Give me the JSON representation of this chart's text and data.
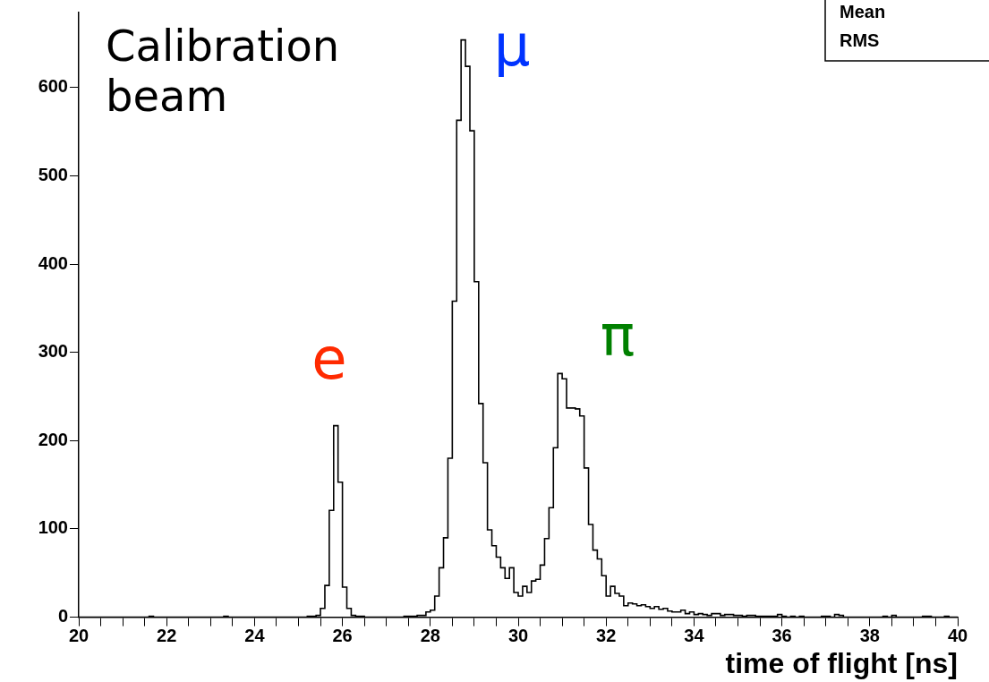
{
  "chart_data": {
    "type": "histogram",
    "xlabel": "time of flight [ns]",
    "bins": [
      20.0,
      20.1,
      20.2,
      20.3,
      20.4,
      20.5,
      20.6,
      20.7,
      20.8,
      20.9,
      21.0,
      21.1,
      21.2,
      21.3,
      21.4,
      21.5,
      21.6,
      21.7,
      21.8,
      21.9,
      22.0,
      22.1,
      22.2,
      22.3,
      22.4,
      22.5,
      22.6,
      22.7,
      22.8,
      22.9,
      23.0,
      23.1,
      23.2,
      23.3,
      23.4,
      23.5,
      23.6,
      23.7,
      23.8,
      23.9,
      24.0,
      24.1,
      24.2,
      24.3,
      24.4,
      24.5,
      24.6,
      24.7,
      24.8,
      24.9,
      25.0,
      25.1,
      25.2,
      25.3,
      25.4,
      25.5,
      25.6,
      25.7,
      25.8,
      25.9,
      26.0,
      26.1,
      26.2,
      26.3,
      26.4,
      26.5,
      26.6,
      26.7,
      26.8,
      26.9,
      27.0,
      27.1,
      27.2,
      27.3,
      27.4,
      27.5,
      27.6,
      27.7,
      27.8,
      27.9,
      28.0,
      28.1,
      28.2,
      28.3,
      28.4,
      28.5,
      28.6,
      28.7,
      28.8,
      28.9,
      29.0,
      29.1,
      29.2,
      29.3,
      29.4,
      29.5,
      29.6,
      29.7,
      29.8,
      29.9,
      30.0,
      30.1,
      30.2,
      30.3,
      30.4,
      30.5,
      30.6,
      30.7,
      30.8,
      30.9,
      31.0,
      31.1,
      31.2,
      31.3,
      31.4,
      31.5,
      31.6,
      31.7,
      31.8,
      31.9,
      32.0,
      32.1,
      32.2,
      32.3,
      32.4,
      32.5,
      32.6,
      32.7,
      32.8,
      32.9,
      33.0,
      33.1,
      33.2,
      33.3,
      33.4,
      33.5,
      33.6,
      33.7,
      33.8,
      33.9,
      34.0,
      34.1,
      34.2,
      34.3,
      34.4,
      34.5,
      34.6,
      34.7,
      34.8,
      34.9,
      35.0,
      35.1,
      35.2,
      35.3,
      35.4,
      35.5,
      35.6,
      35.7,
      35.8,
      35.9,
      36.0,
      36.1,
      36.2,
      36.3,
      36.4,
      36.5,
      36.6,
      36.7,
      36.8,
      36.9,
      37.0,
      37.1,
      37.2,
      37.3,
      37.4,
      37.5,
      37.6,
      37.7,
      37.8,
      37.9,
      38.0,
      38.1,
      38.2,
      38.3,
      38.4,
      38.5,
      38.6,
      38.7,
      38.8,
      38.9,
      39.0,
      39.1,
      39.2,
      39.3,
      39.4,
      39.5,
      39.6,
      39.7,
      39.8,
      39.9,
      40.0
    ],
    "values": [
      0,
      0,
      0,
      0,
      0,
      0,
      0,
      0,
      0,
      0,
      0,
      0,
      0,
      0,
      0,
      0,
      1,
      0,
      0,
      0,
      0,
      0,
      0,
      0,
      0,
      0,
      0,
      0,
      0,
      0,
      0,
      0,
      0,
      1,
      0,
      0,
      0,
      0,
      0,
      0,
      0,
      0,
      0,
      0,
      0,
      0,
      0,
      0,
      0,
      0,
      0,
      0,
      1,
      1,
      2,
      10,
      36,
      121,
      217,
      153,
      34,
      10,
      2,
      1,
      1,
      0,
      0,
      0,
      0,
      0,
      0,
      0,
      0,
      0,
      1,
      1,
      1,
      2,
      2,
      6,
      8,
      24,
      56,
      90,
      180,
      358,
      563,
      654,
      624,
      551,
      380,
      242,
      175,
      99,
      81,
      68,
      56,
      44,
      56,
      28,
      24,
      35,
      28,
      41,
      43,
      59,
      89,
      124,
      192,
      276,
      270,
      237,
      237,
      236,
      228,
      169,
      105,
      76,
      66,
      47,
      24,
      35,
      27,
      24,
      13,
      16,
      15,
      13,
      14,
      12,
      10,
      12,
      9,
      10,
      7,
      6,
      6,
      8,
      4,
      6,
      3,
      4,
      3,
      2,
      4,
      4,
      2,
      3,
      3,
      2,
      2,
      1,
      2,
      2,
      1,
      1,
      1,
      1,
      1,
      3,
      1,
      0,
      1,
      0,
      1,
      0,
      0,
      0,
      0,
      1,
      1,
      0,
      3,
      2,
      0,
      0,
      0,
      0,
      0,
      0,
      0,
      0,
      0,
      1,
      0,
      2,
      0,
      0,
      0,
      0,
      0,
      0,
      1,
      1,
      0,
      0,
      0,
      1,
      0,
      0
    ],
    "color": "#000000",
    "xlim": [
      20,
      40
    ],
    "xticks": [
      20,
      {
        "value": 20.5,
        "label": null
      },
      {
        "value": 21,
        "label": null
      },
      {
        "value": 21.5,
        "label": null
      },
      22,
      {
        "value": 22.5,
        "label": null
      },
      {
        "value": 23,
        "label": null
      },
      {
        "value": 23.5,
        "label": null
      },
      24,
      {
        "value": 24.5,
        "label": null
      },
      {
        "value": 25,
        "label": null
      },
      {
        "value": 25.5,
        "label": null
      },
      26,
      {
        "value": 26.5,
        "label": null
      },
      {
        "value": 27,
        "label": null
      },
      {
        "value": 27.5,
        "label": null
      },
      28,
      {
        "value": 28.5,
        "label": null
      },
      {
        "value": 29,
        "label": null
      },
      {
        "value": 29.5,
        "label": null
      },
      30,
      {
        "value": 30.5,
        "label": null
      },
      {
        "value": 31,
        "label": null
      },
      {
        "value": 31.5,
        "label": null
      },
      32,
      {
        "value": 32.5,
        "label": null
      },
      {
        "value": 33,
        "label": null
      },
      {
        "value": 33.5,
        "label": null
      },
      34,
      {
        "value": 34.5,
        "label": null
      },
      {
        "value": 35,
        "label": null
      },
      {
        "value": 35.5,
        "label": null
      },
      36,
      {
        "value": 36.5,
        "label": null
      },
      {
        "value": 37,
        "label": null
      },
      {
        "value": 37.5,
        "label": null
      },
      38,
      {
        "value": 38.5,
        "label": null
      },
      {
        "value": 39,
        "label": null
      },
      {
        "value": 39.5,
        "label": null
      },
      40
    ],
    "ylim": [
      0,
      685
    ],
    "yticks": [
      0,
      100,
      200,
      300,
      400,
      500,
      600
    ],
    "grid": false,
    "legend": false,
    "annotations": [
      "Calibration beam",
      "e",
      "μ",
      "π",
      "Mean",
      "RMS"
    ]
  }
}
